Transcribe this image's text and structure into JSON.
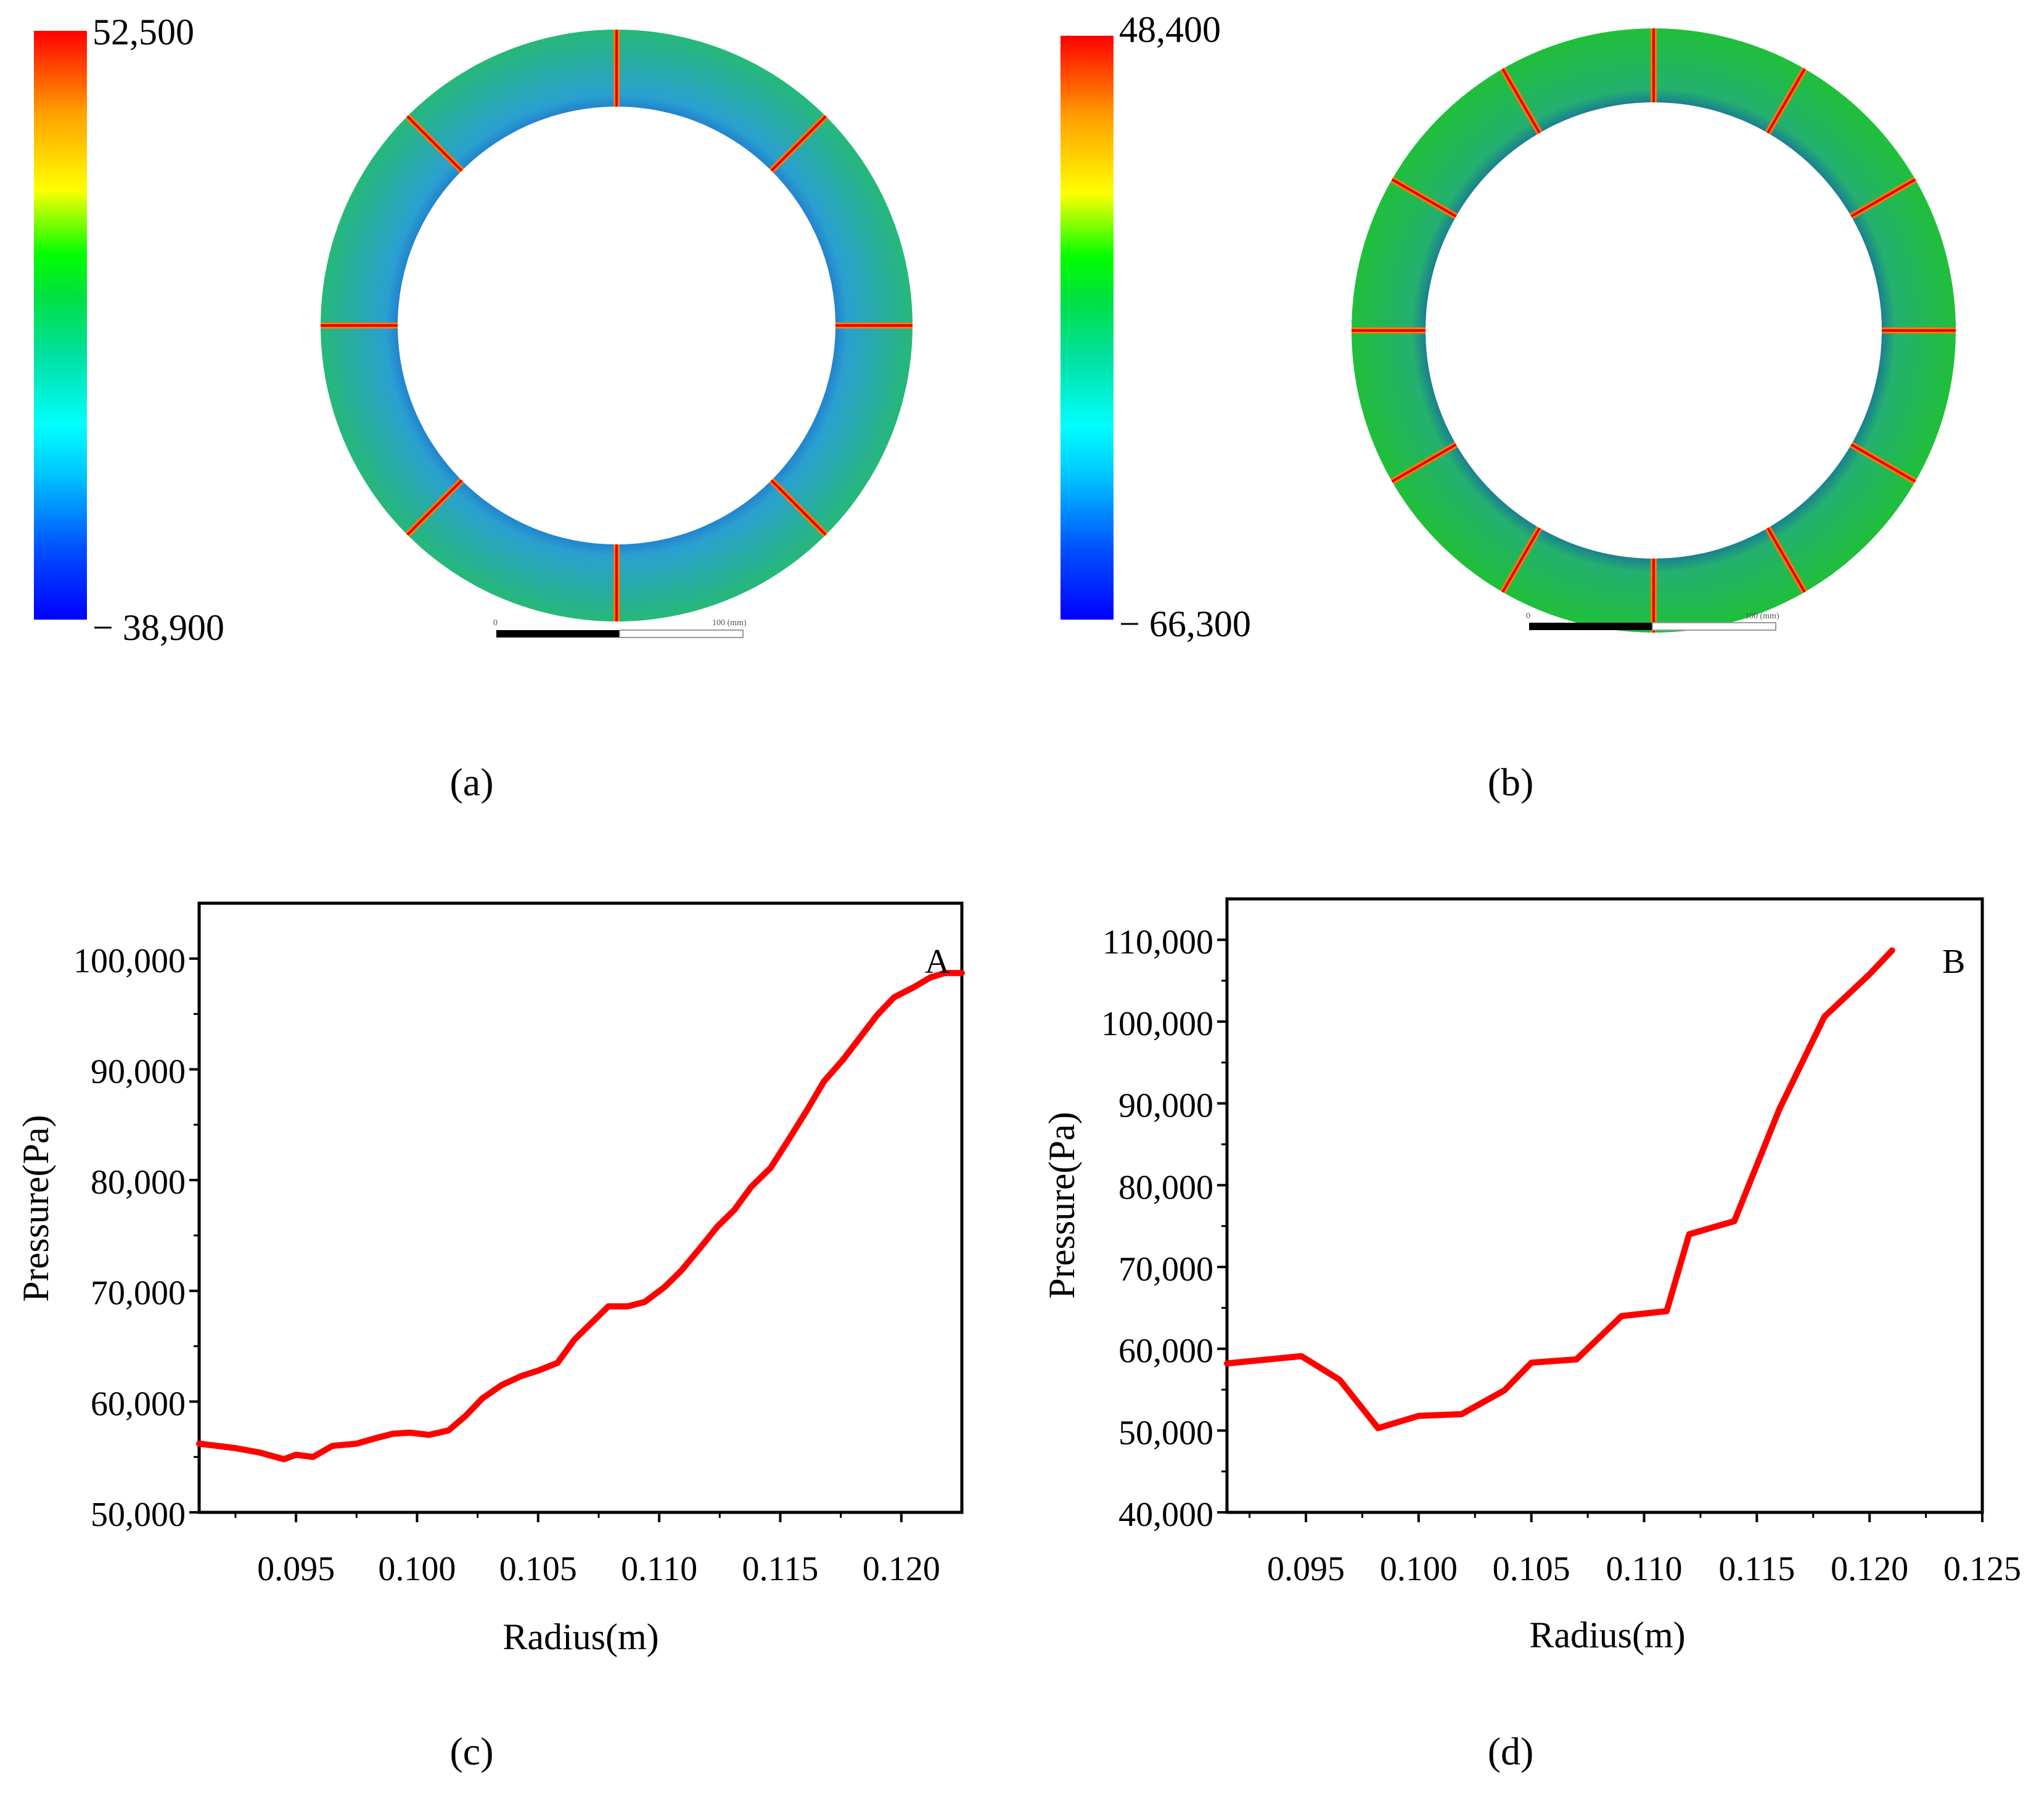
{
  "panels": {
    "a": {
      "label": "(a)",
      "colorbar": {
        "max_label": "52,500",
        "min_label": "− 38,900"
      },
      "blade_count": 8,
      "scale": {
        "zero": "0",
        "end": "100 (mm)"
      }
    },
    "b": {
      "label": "(b)",
      "colorbar": {
        "max_label": "48,400",
        "min_label": "− 66,300"
      },
      "blade_count": 12,
      "scale": {
        "zero": "0",
        "end": "100 (mm)"
      }
    },
    "c": {
      "label": "(c)"
    },
    "d": {
      "label": "(d)"
    }
  },
  "colors": {
    "line": "#ff0000",
    "ring_green": "#1fbf5a",
    "ring_blue": "#0a2fc4",
    "colormap": [
      "#0000ff",
      "#00a0ff",
      "#00ffff",
      "#00e0a0",
      "#00d040",
      "#00e000",
      "#ffff00",
      "#ffa000",
      "#ff0000"
    ]
  },
  "chart_data": [
    {
      "type": "line",
      "panel": "c",
      "series_label": "A",
      "xlabel": "Radius(m)",
      "ylabel": "Pressure(Pa)",
      "xlim": [
        0.091,
        0.1225
      ],
      "ylim": [
        50000,
        105000
      ],
      "xticks": [
        0.095,
        0.1,
        0.105,
        0.11,
        0.115,
        0.12
      ],
      "xtick_labels": [
        "0.095",
        "0.100",
        "0.105",
        "0.110",
        "0.115",
        "0.120"
      ],
      "yticks": [
        50000,
        60000,
        70000,
        80000,
        90000,
        100000
      ],
      "ytick_labels": [
        "50,000",
        "60,000",
        "70,000",
        "80,000",
        "90,000",
        "100,000"
      ],
      "x": [
        0.091,
        0.0925,
        0.0935,
        0.0945,
        0.095,
        0.0957,
        0.0965,
        0.0975,
        0.0983,
        0.099,
        0.0997,
        0.1005,
        0.1013,
        0.102,
        0.1027,
        0.1035,
        0.1043,
        0.105,
        0.1058,
        0.1065,
        0.1072,
        0.1079,
        0.1087,
        0.1094,
        0.1102,
        0.1109,
        0.1117,
        0.1124,
        0.1131,
        0.1138,
        0.1146,
        0.1153,
        0.1161,
        0.1168,
        0.1176,
        0.1183,
        0.119,
        0.1197,
        0.1205,
        0.1212,
        0.1218,
        0.1225
      ],
      "y": [
        56200,
        55800,
        55400,
        54800,
        55200,
        55000,
        56000,
        56200,
        56700,
        57100,
        57200,
        57000,
        57400,
        58700,
        60300,
        61500,
        62300,
        62800,
        63500,
        65600,
        67100,
        68600,
        68600,
        69000,
        70300,
        71800,
        73900,
        75800,
        77300,
        79400,
        81100,
        83500,
        86300,
        88900,
        90900,
        92900,
        94900,
        96500,
        97400,
        98300,
        98700,
        98700
      ]
    },
    {
      "type": "line",
      "panel": "d",
      "series_label": "B",
      "xlabel": "Radius(m)",
      "ylabel": "Pressure(Pa)",
      "xlim": [
        0.0915,
        0.125
      ],
      "ylim": [
        40000,
        115000
      ],
      "xticks": [
        0.095,
        0.1,
        0.105,
        0.11,
        0.115,
        0.12,
        0.125
      ],
      "xtick_labels": [
        "0.095",
        "0.100",
        "0.105",
        "0.110",
        "0.115",
        "0.120",
        "0.125"
      ],
      "yticks": [
        40000,
        50000,
        60000,
        70000,
        80000,
        90000,
        100000,
        110000
      ],
      "ytick_labels": [
        "40,000",
        "50,000",
        "60,000",
        "70,000",
        "80,000",
        "90,000",
        "100,000",
        "110,000"
      ],
      "x": [
        0.0915,
        0.0948,
        0.0965,
        0.0982,
        0.1,
        0.1019,
        0.1038,
        0.105,
        0.107,
        0.109,
        0.111,
        0.112,
        0.114,
        0.116,
        0.118,
        0.12,
        0.121
      ],
      "y": [
        58200,
        59100,
        56200,
        50300,
        51800,
        52000,
        54900,
        58300,
        58700,
        64000,
        64600,
        74000,
        75600,
        89300,
        100600,
        105800,
        108700
      ]
    }
  ]
}
